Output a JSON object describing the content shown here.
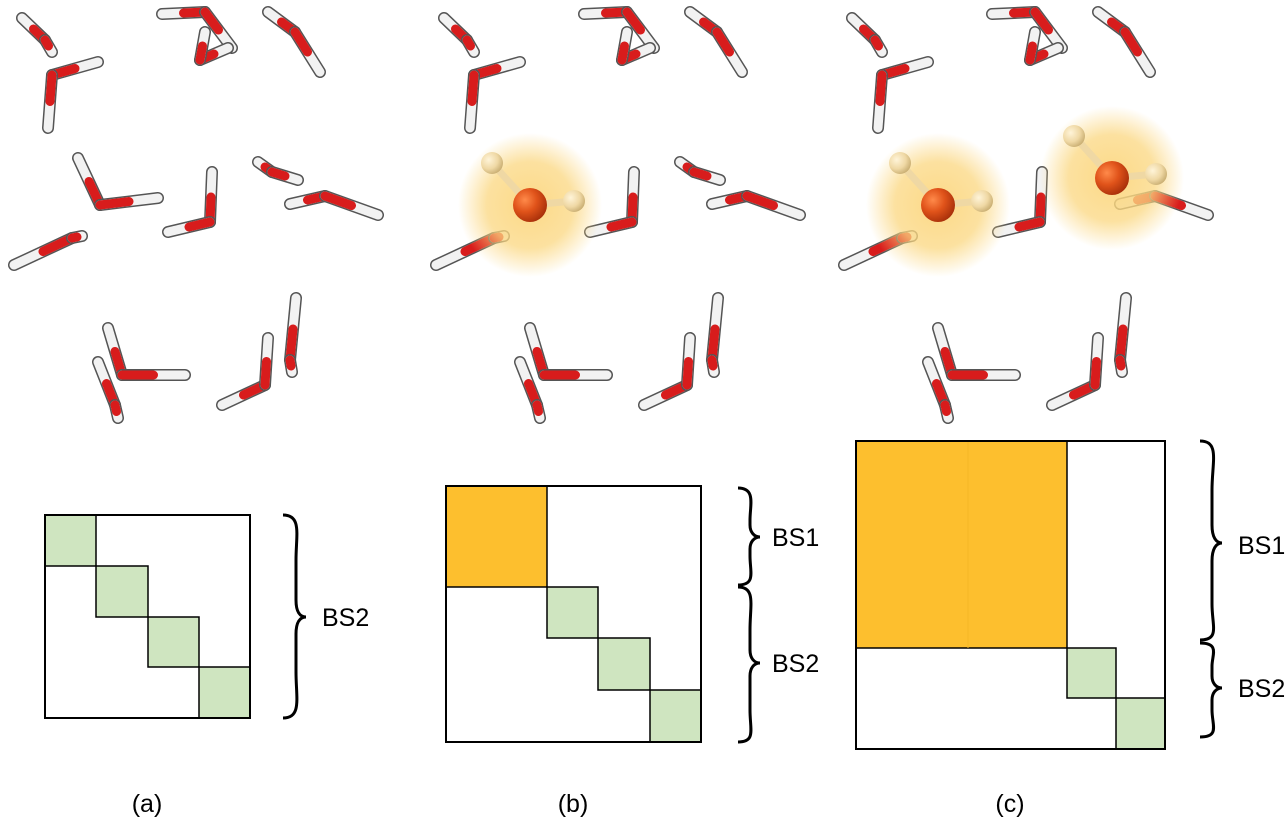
{
  "colors": {
    "oxygen": "#d81c1c",
    "hydrogen": "#f2f2f2",
    "highlight_oxygen": "#e0531a",
    "highlight_hydrogen": "#efd8a4",
    "glow": "#fbd780",
    "bs1_block": "#fdbf2e",
    "bs2_block": "#cfe5c0",
    "border": "#000000"
  },
  "panels": [
    {
      "id": "a",
      "caption": "(a)",
      "highlighted_molecules": 0,
      "braces": [
        {
          "label": "BS2"
        }
      ]
    },
    {
      "id": "b",
      "caption": "(b)",
      "highlighted_molecules": 1,
      "braces": [
        {
          "label": "BS1"
        },
        {
          "label": "BS2"
        }
      ]
    },
    {
      "id": "c",
      "caption": "(c)",
      "highlighted_molecules": 2,
      "braces": [
        {
          "label": "BS1"
        },
        {
          "label": "BS2"
        }
      ]
    }
  ]
}
